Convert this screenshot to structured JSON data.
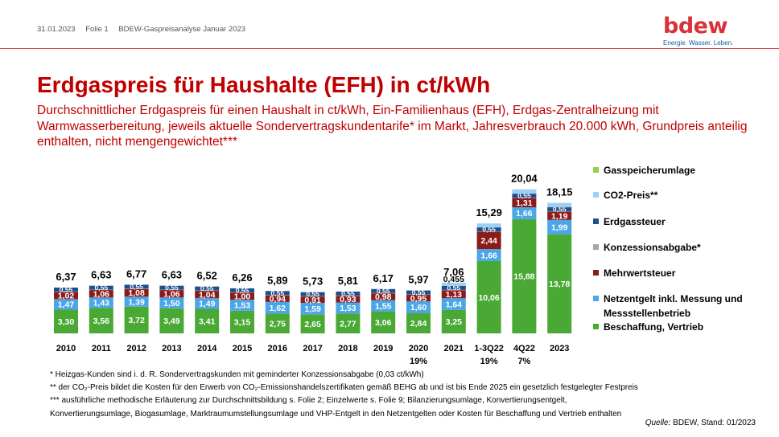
{
  "header": {
    "date": "31.01.2023",
    "slide": "Folie 1",
    "doc_title": "BDEW-Gaspreisanalyse Januar 2023"
  },
  "logo": {
    "word": "bdew",
    "tagline": "Energie. Wasser. Leben."
  },
  "title": "Erdgaspreis für Haushalte (EFH) in ct/kWh",
  "subtitle": "Durchschnittlicher Erdgaspreis für einen Haushalt in ct/kWh, Ein-Familienhaus (EFH), Erdgas-Zentralheizung mit Warmwasserbereitung, jeweils aktuelle Sondervertragskundentarife* im Markt, Jahresverbrauch 20.000 kWh, Grundpreis anteilig enthalten, nicht mengengewichtet***",
  "footnotes": [
    "* Heizgas-Kunden sind i. d. R. Sondervertragskunden mit geminderter  Konzessionsabgabe (0,03 ct/kWh)",
    "** der CO₂-Preis bildet die Kosten für den Erwerb von CO₂-Emissionshandelszertifikaten gemäß BEHG ab und ist bis Ende 2025 ein gesetzlich festgelegter  Festpreis",
    "***  ausführliche methodische Erläuterung zur Durchschnittsbildung s. Folie 2; Einzelwerte s. Folie 9; Bilanzierungsumlage, Konvertierungsentgelt,",
    "Konvertierungsumlage, Biogasumlage, Marktraumumstellungsumlage und VHP-Entgelt  in den Netzentgelten   oder Kosten für Beschaffung und Vertrieb enthalten"
  ],
  "source": {
    "label": "Quelle:",
    "text": " BDEW, Stand: 01/2023"
  },
  "chart_data": {
    "type": "bar",
    "stacked": true,
    "categories": [
      "2010",
      "2011",
      "2012",
      "2013",
      "2014",
      "2015",
      "2016",
      "2017",
      "2018",
      "2019",
      "2020",
      "2021",
      "1-3Q22",
      "4Q22",
      "2023"
    ],
    "category_notes": [
      "",
      "",
      "",
      "",
      "",
      "",
      "",
      "",
      "",
      "",
      "19%",
      "",
      "19%",
      "7%",
      ""
    ],
    "totals": [
      "6,37",
      "6,63",
      "6,77",
      "6,63",
      "6,52",
      "6,26",
      "5,89",
      "5,73",
      "5,81",
      "6,17",
      "5,97",
      "7,06",
      "15,29",
      "20,04",
      "18,15"
    ],
    "totals_values": [
      6.37,
      6.63,
      6.77,
      6.63,
      6.52,
      6.26,
      5.89,
      5.73,
      5.81,
      6.17,
      5.97,
      7.06,
      15.29,
      20.04,
      18.15
    ],
    "extra_labels": [
      {
        "category": "2021",
        "text": "0,455"
      }
    ],
    "series": [
      {
        "name": "Beschaffung, Vertrieb",
        "color": "#4aa834",
        "values": [
          3.3,
          3.56,
          3.72,
          3.49,
          3.41,
          3.15,
          2.75,
          2.65,
          2.77,
          3.06,
          2.84,
          3.25,
          10.06,
          15.88,
          13.78
        ],
        "labels": [
          "3,30",
          "3,56",
          "3,72",
          "3,49",
          "3,41",
          "3,15",
          "2,75",
          "2,65",
          "2,77",
          "3,06",
          "2,84",
          "3,25",
          "10,06",
          "15,88",
          "13,78"
        ]
      },
      {
        "name": "Netzentgelt inkl. Messung und Messstellenbetrieb",
        "color": "#4ba6e8",
        "values": [
          1.47,
          1.43,
          1.39,
          1.5,
          1.49,
          1.53,
          1.62,
          1.59,
          1.53,
          1.55,
          1.6,
          1.64,
          1.66,
          1.66,
          1.99
        ],
        "labels": [
          "1,47",
          "1,43",
          "1,39",
          "1,50",
          "1,49",
          "1,53",
          "1,62",
          "1,59",
          "1,53",
          "1,55",
          "1,60",
          "1,64",
          "1,66",
          "1,66",
          "1,99"
        ]
      },
      {
        "name": "Mehrwertsteuer",
        "color": "#8b1b1b",
        "values": [
          1.02,
          1.06,
          1.08,
          1.06,
          1.04,
          1.0,
          0.94,
          0.91,
          0.93,
          0.98,
          0.95,
          1.13,
          2.44,
          1.31,
          1.19
        ],
        "labels": [
          "1,02",
          "1,06",
          "1,08",
          "1,06",
          "1,04",
          "1,00",
          "0,94",
          "0,91",
          "0,93",
          "0,98",
          "0,95",
          "1,13",
          "2,44",
          "1,31",
          "1,19"
        ]
      },
      {
        "name": "Konzessionsabgabe*",
        "color": "#a6a6a6",
        "values": [
          0.03,
          0.03,
          0.03,
          0.03,
          0.03,
          0.03,
          0.03,
          0.03,
          0.03,
          0.03,
          0.03,
          0.03,
          0.03,
          0.03,
          0.03
        ],
        "labels": [
          "",
          "",
          "",
          "",
          "",
          "",
          "",
          "",
          "",
          "",
          "",
          "",
          "",
          "",
          ""
        ]
      },
      {
        "name": "Erdgassteuer",
        "color": "#1f4e8c",
        "values": [
          0.55,
          0.55,
          0.55,
          0.55,
          0.55,
          0.55,
          0.55,
          0.55,
          0.55,
          0.55,
          0.55,
          0.55,
          0.55,
          0.55,
          0.55
        ],
        "labels": [
          "0,55",
          "0,55",
          "0,55",
          "0,55",
          "0,55",
          "0,55",
          "0,55",
          "0,55",
          "0,55",
          "0,55",
          "0,55",
          "0,55",
          "0,55",
          "0,55",
          "0,55"
        ]
      },
      {
        "name": "CO2-Preis**",
        "color": "#9fd0f2",
        "values": [
          0,
          0,
          0,
          0,
          0,
          0,
          0,
          0,
          0,
          0,
          0,
          0.455,
          0.55,
          0.61,
          0.61
        ],
        "labels": [
          "",
          "",
          "",
          "",
          "",
          "",
          "",
          "",
          "",
          "",
          "",
          "",
          "",
          "",
          ""
        ]
      },
      {
        "name": "Gasspeicherumlage",
        "color": "#92d050",
        "values": [
          0,
          0,
          0,
          0,
          0,
          0,
          0,
          0,
          0,
          0,
          0,
          0,
          0,
          0,
          0
        ],
        "labels": [
          "",
          "",
          "",
          "",
          "",
          "",
          "",
          "",
          "",
          "",
          "",
          "",
          "",
          "",
          ""
        ]
      }
    ],
    "legend_order": [
      "Gasspeicherumlage",
      "CO2-Preis**",
      "Erdgassteuer",
      "Konzessionsabgabe*",
      "Mehrwertsteuer",
      "Netzentgelt inkl. Messung und Messstellenbetrieb",
      "Beschaffung, Vertrieb"
    ],
    "legend_position": "right",
    "ylim": [
      0,
      21
    ],
    "grid": false
  }
}
